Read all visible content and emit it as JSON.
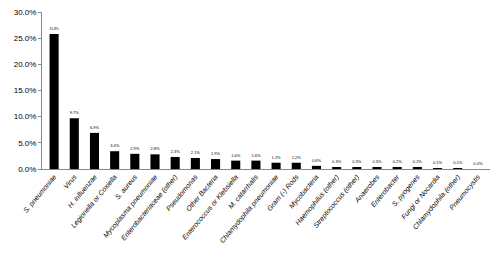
{
  "chart_data": {
    "type": "bar",
    "categories": [
      "S. pneumoniae",
      "Virus",
      "H. influenzae",
      "Legionella or Coxiella",
      "S. aureus",
      "Mycoplasma pneumoniae",
      "Enterobacteriaceae (other)",
      "Pseudomonas",
      "Other Bacteria",
      "Enterococcus or Klebsiella",
      "M. catarrhalis",
      "Chlamydophila pneumoniae",
      "Gram (-) Rods",
      "Mycobacteria",
      "Haemophilus (other)",
      "Streptococcus (other)",
      "Anaerobes",
      "Enterobacter",
      "S. pyogenes",
      "Fungi or Nocardia",
      "Chlamydophila (other)",
      "Pneumocystis"
    ],
    "values": [
      25.8,
      9.7,
      6.9,
      3.4,
      2.9,
      2.8,
      2.3,
      2.1,
      1.9,
      1.6,
      1.6,
      1.2,
      1.2,
      0.6,
      0.3,
      0.3,
      0.3,
      0.2,
      0.2,
      0.1,
      0.1,
      0.0
    ],
    "value_labels": [
      "25.8%",
      "9.7%",
      "6.9%",
      "3.4%",
      "2.9%",
      "2.8%",
      "2.3%",
      "2.1%",
      "1.9%",
      "1.6%",
      "1.6%",
      "1.2%",
      "1.2%",
      "0.6%",
      "0.3%",
      "0.3%",
      "0.3%",
      "0.2%",
      "0.2%",
      "0.1%",
      "0.1%",
      "0.0%"
    ],
    "data_labels": true,
    "color": "#000000",
    "ylim": [
      0,
      30
    ],
    "yticks": [
      {
        "value": 0,
        "label": "0.0%"
      },
      {
        "value": 5,
        "label": "5.0%"
      },
      {
        "value": 10,
        "label": "10.0%"
      },
      {
        "value": 15,
        "label": "15.0%"
      },
      {
        "value": 20,
        "label": "20.0%"
      },
      {
        "value": 25,
        "label": "25.0%"
      },
      {
        "value": 30,
        "label": "30.0%"
      }
    ],
    "grid": false
  }
}
